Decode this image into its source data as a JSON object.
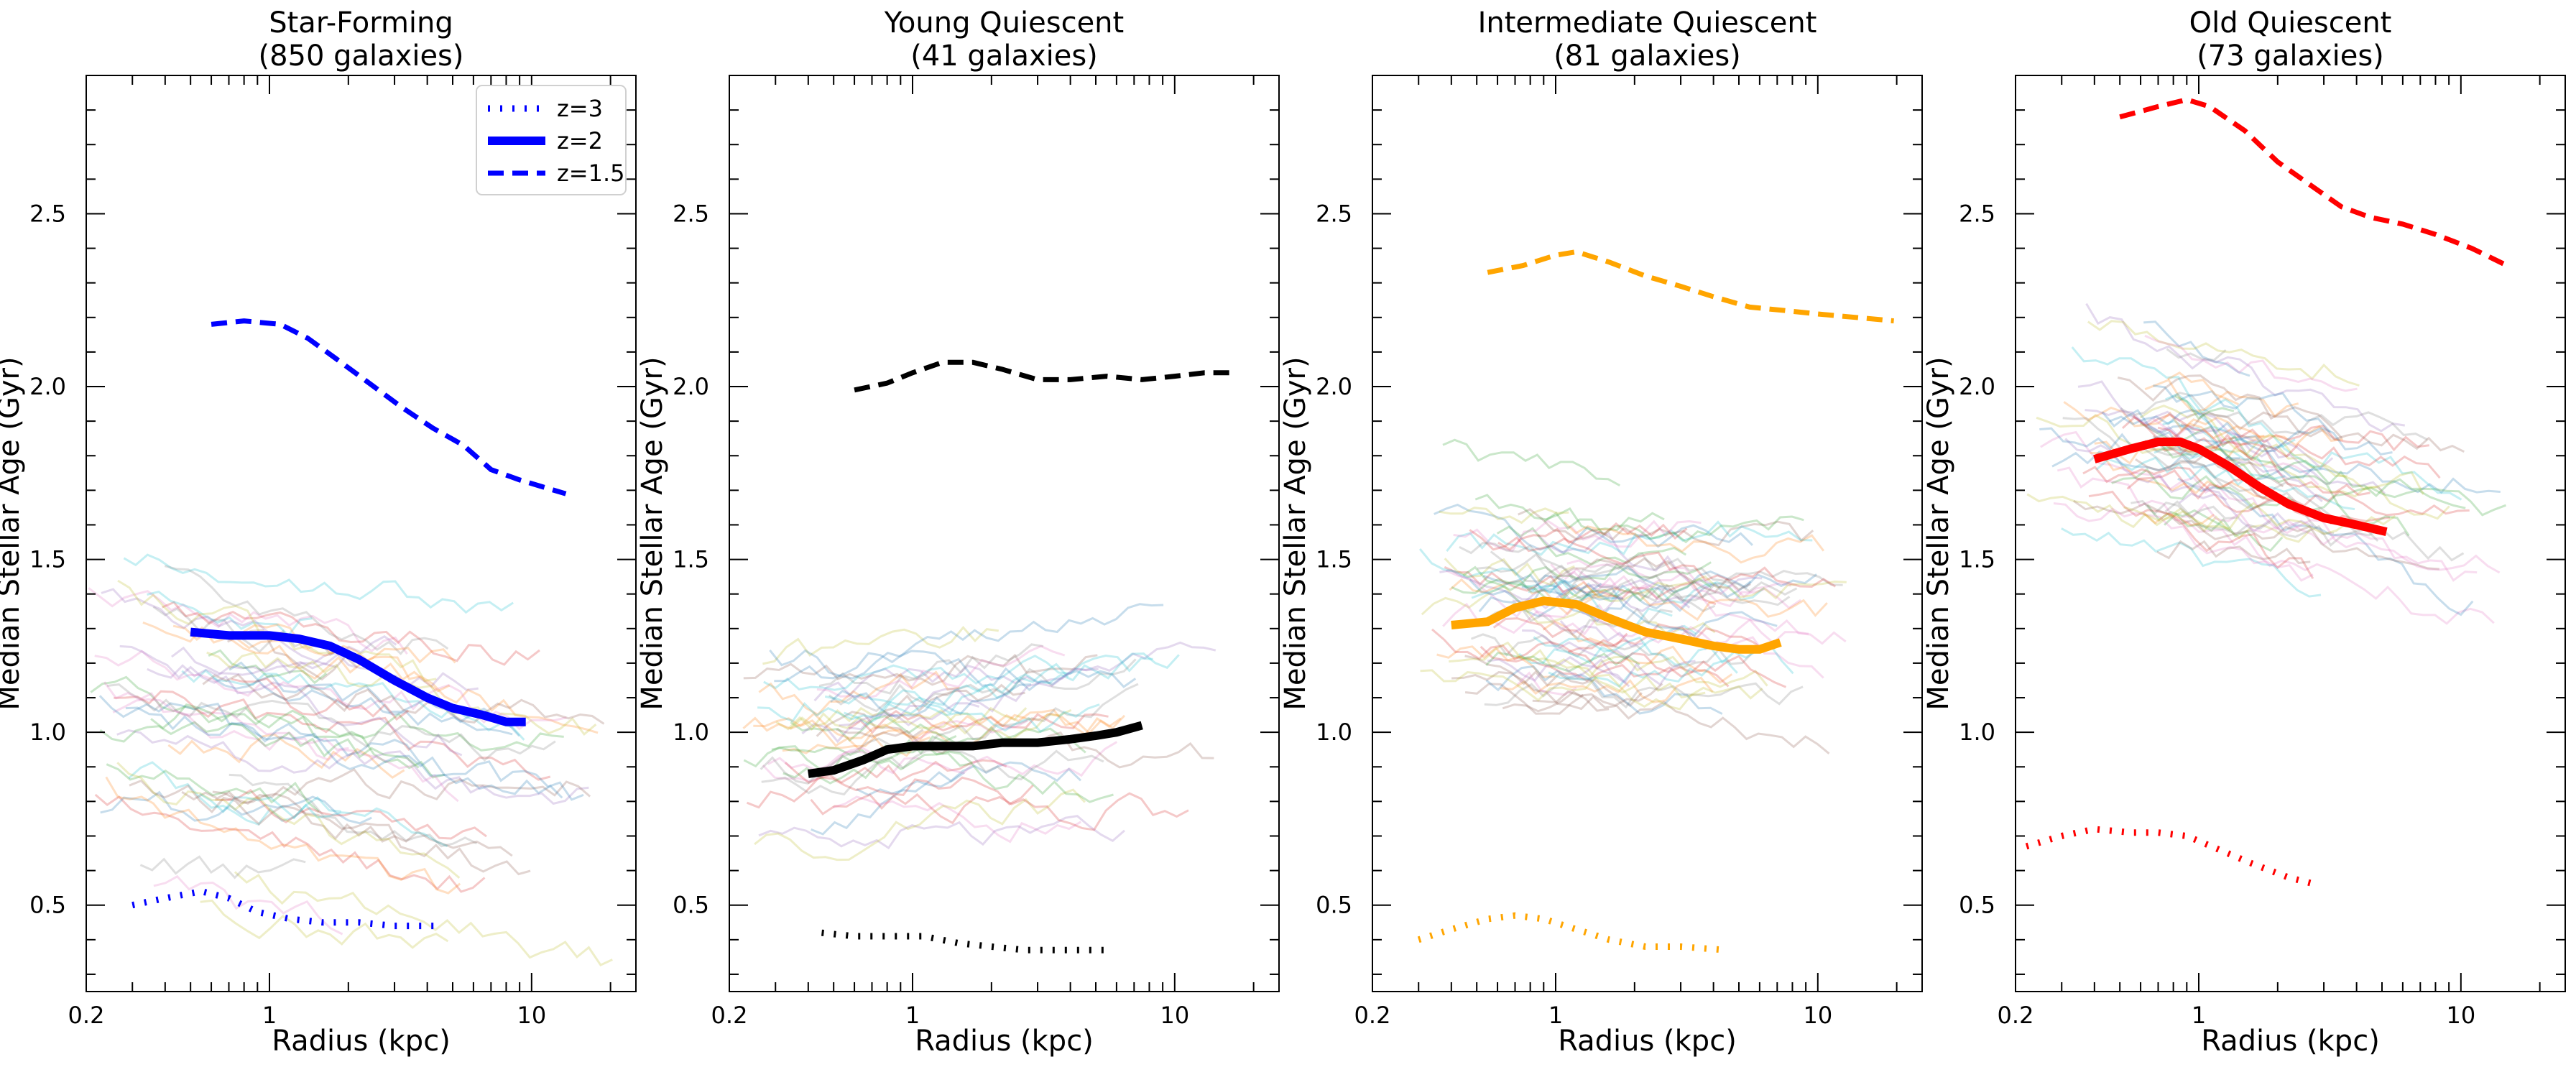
{
  "figure": {
    "ylabel": "Median Stellar Age (Gyr)",
    "xlabel": "Radius (kpc)"
  },
  "legend": [
    {
      "label": "z=3",
      "style": "dotted"
    },
    {
      "label": "z=2",
      "style": "solid"
    },
    {
      "label": "z=1.5",
      "style": "dashed"
    }
  ],
  "chart_data": [
    {
      "type": "line",
      "title": "Star-Forming",
      "subtitle": "(850 galaxies)",
      "xlabel": "Radius (kpc)",
      "ylabel": "Median Stellar Age (Gyr)",
      "xscale": "log",
      "xlim": [
        0.2,
        25
      ],
      "ylim": [
        0.25,
        2.9
      ],
      "xticks": [
        0.2,
        1,
        10
      ],
      "xtick_labels": [
        "0.2",
        "1",
        "10"
      ],
      "yticks": [
        0.5,
        1.0,
        1.5,
        2.0,
        2.5
      ],
      "ytick_labels": [
        "0.5",
        "1.0",
        "1.5",
        "2.0",
        "2.5"
      ],
      "color": "#0000ff",
      "legend_position": "top-right",
      "series": [
        {
          "name": "z=3",
          "style": "dotted",
          "x": [
            0.3,
            0.4,
            0.55,
            0.7,
            0.9,
            1.2,
            1.6,
            2.2,
            3,
            4.5
          ],
          "y": [
            0.5,
            0.52,
            0.54,
            0.52,
            0.48,
            0.46,
            0.45,
            0.45,
            0.44,
            0.44
          ]
        },
        {
          "name": "z=2",
          "style": "solid",
          "x": [
            0.5,
            0.7,
            1.0,
            1.3,
            1.7,
            2.2,
            3,
            4,
            5,
            6.5,
            8,
            9.5
          ],
          "y": [
            1.29,
            1.28,
            1.28,
            1.27,
            1.25,
            1.21,
            1.15,
            1.1,
            1.07,
            1.05,
            1.03,
            1.03
          ]
        },
        {
          "name": "z=1.5",
          "style": "dashed",
          "x": [
            0.6,
            0.8,
            1.1,
            1.4,
            1.8,
            2.4,
            3.2,
            4.2,
            5.5,
            7,
            9,
            11,
            13.5
          ],
          "y": [
            2.18,
            2.19,
            2.18,
            2.14,
            2.08,
            2.01,
            1.94,
            1.88,
            1.83,
            1.76,
            1.73,
            1.71,
            1.69
          ]
        }
      ]
    },
    {
      "type": "line",
      "title": "Young Quiescent",
      "subtitle": "(41 galaxies)",
      "xlabel": "Radius (kpc)",
      "ylabel": "Median Stellar Age (Gyr)",
      "xscale": "log",
      "xlim": [
        0.2,
        25
      ],
      "ylim": [
        0.25,
        2.9
      ],
      "xticks": [
        0.2,
        1,
        10
      ],
      "xtick_labels": [
        "0.2",
        "1",
        "10"
      ],
      "yticks": [
        0.5,
        1.0,
        1.5,
        2.0,
        2.5
      ],
      "ytick_labels": [
        "0.5",
        "1.0",
        "1.5",
        "2.0",
        "2.5"
      ],
      "color": "#000000",
      "series": [
        {
          "name": "z=3",
          "style": "dotted",
          "x": [
            0.45,
            0.6,
            0.8,
            1.1,
            1.5,
            2,
            2.7,
            3.5,
            4.5,
            5.5
          ],
          "y": [
            0.42,
            0.41,
            0.41,
            0.41,
            0.39,
            0.38,
            0.37,
            0.37,
            0.37,
            0.37
          ]
        },
        {
          "name": "z=2",
          "style": "solid",
          "x": [
            0.4,
            0.5,
            0.65,
            0.8,
            1.0,
            1.3,
            1.7,
            2.2,
            3,
            4,
            5,
            6,
            7.5
          ],
          "y": [
            0.88,
            0.89,
            0.92,
            0.95,
            0.96,
            0.96,
            0.96,
            0.97,
            0.97,
            0.98,
            0.99,
            1.0,
            1.02
          ]
        },
        {
          "name": "z=1.5",
          "style": "dashed",
          "x": [
            0.6,
            0.8,
            1.0,
            1.3,
            1.7,
            2.2,
            3,
            4,
            5.5,
            7.5,
            10,
            13,
            16.5
          ],
          "y": [
            1.99,
            2.01,
            2.04,
            2.07,
            2.07,
            2.05,
            2.02,
            2.02,
            2.03,
            2.02,
            2.03,
            2.04,
            2.04
          ]
        }
      ]
    },
    {
      "type": "line",
      "title": "Intermediate Quiescent",
      "subtitle": "(81 galaxies)",
      "xlabel": "Radius (kpc)",
      "ylabel": "Median Stellar Age (Gyr)",
      "xscale": "log",
      "xlim": [
        0.2,
        25
      ],
      "ylim": [
        0.25,
        2.9
      ],
      "xticks": [
        0.2,
        1,
        10
      ],
      "xtick_labels": [
        "0.2",
        "1",
        "10"
      ],
      "yticks": [
        0.5,
        1.0,
        1.5,
        2.0,
        2.5
      ],
      "ytick_labels": [
        "0.5",
        "1.0",
        "1.5",
        "2.0",
        "2.5"
      ],
      "color": "#ffa500",
      "series": [
        {
          "name": "z=3",
          "style": "dotted",
          "x": [
            0.3,
            0.4,
            0.55,
            0.7,
            0.9,
            1.2,
            1.6,
            2.2,
            3,
            4.5
          ],
          "y": [
            0.4,
            0.43,
            0.46,
            0.47,
            0.46,
            0.43,
            0.4,
            0.38,
            0.38,
            0.37
          ]
        },
        {
          "name": "z=2",
          "style": "solid",
          "x": [
            0.4,
            0.55,
            0.7,
            0.9,
            1.2,
            1.6,
            2.2,
            3,
            4,
            5,
            6,
            7.2
          ],
          "y": [
            1.31,
            1.32,
            1.36,
            1.38,
            1.37,
            1.33,
            1.29,
            1.27,
            1.25,
            1.24,
            1.24,
            1.26
          ]
        },
        {
          "name": "z=1.5",
          "style": "dashed",
          "x": [
            0.55,
            0.75,
            1.0,
            1.2,
            1.6,
            2.2,
            3,
            4,
            5.5,
            7.5,
            10,
            14,
            19.5
          ],
          "y": [
            2.33,
            2.35,
            2.38,
            2.39,
            2.36,
            2.32,
            2.29,
            2.26,
            2.23,
            2.22,
            2.21,
            2.2,
            2.19
          ]
        }
      ]
    },
    {
      "type": "line",
      "title": "Old Quiescent",
      "subtitle": "(73 galaxies)",
      "xlabel": "Radius (kpc)",
      "ylabel": "Median Stellar Age (Gyr)",
      "xscale": "log",
      "xlim": [
        0.2,
        25
      ],
      "ylim": [
        0.25,
        2.9
      ],
      "xticks": [
        0.2,
        1,
        10
      ],
      "xtick_labels": [
        "0.2",
        "1",
        "10"
      ],
      "yticks": [
        0.5,
        1.0,
        1.5,
        2.0,
        2.5
      ],
      "ytick_labels": [
        "0.5",
        "1.0",
        "1.5",
        "2.0",
        "2.5"
      ],
      "color": "#ff0000",
      "series": [
        {
          "name": "z=3",
          "style": "dotted",
          "x": [
            0.22,
            0.3,
            0.4,
            0.55,
            0.7,
            0.9,
            1.2,
            1.6,
            2.2,
            2.8
          ],
          "y": [
            0.67,
            0.7,
            0.72,
            0.71,
            0.71,
            0.7,
            0.66,
            0.62,
            0.58,
            0.56
          ]
        },
        {
          "name": "z=2",
          "style": "solid",
          "x": [
            0.4,
            0.55,
            0.7,
            0.85,
            1.0,
            1.3,
            1.7,
            2.2,
            3,
            4,
            5.2
          ],
          "y": [
            1.79,
            1.82,
            1.84,
            1.84,
            1.82,
            1.77,
            1.71,
            1.66,
            1.62,
            1.6,
            1.58
          ]
        },
        {
          "name": "z=1.5",
          "style": "dashed",
          "x": [
            0.5,
            0.7,
            0.9,
            1.1,
            1.5,
            2,
            2.7,
            3.5,
            4.5,
            6,
            8,
            11,
            15
          ],
          "y": [
            2.78,
            2.81,
            2.83,
            2.81,
            2.74,
            2.65,
            2.58,
            2.52,
            2.49,
            2.47,
            2.44,
            2.4,
            2.35
          ]
        }
      ]
    }
  ]
}
